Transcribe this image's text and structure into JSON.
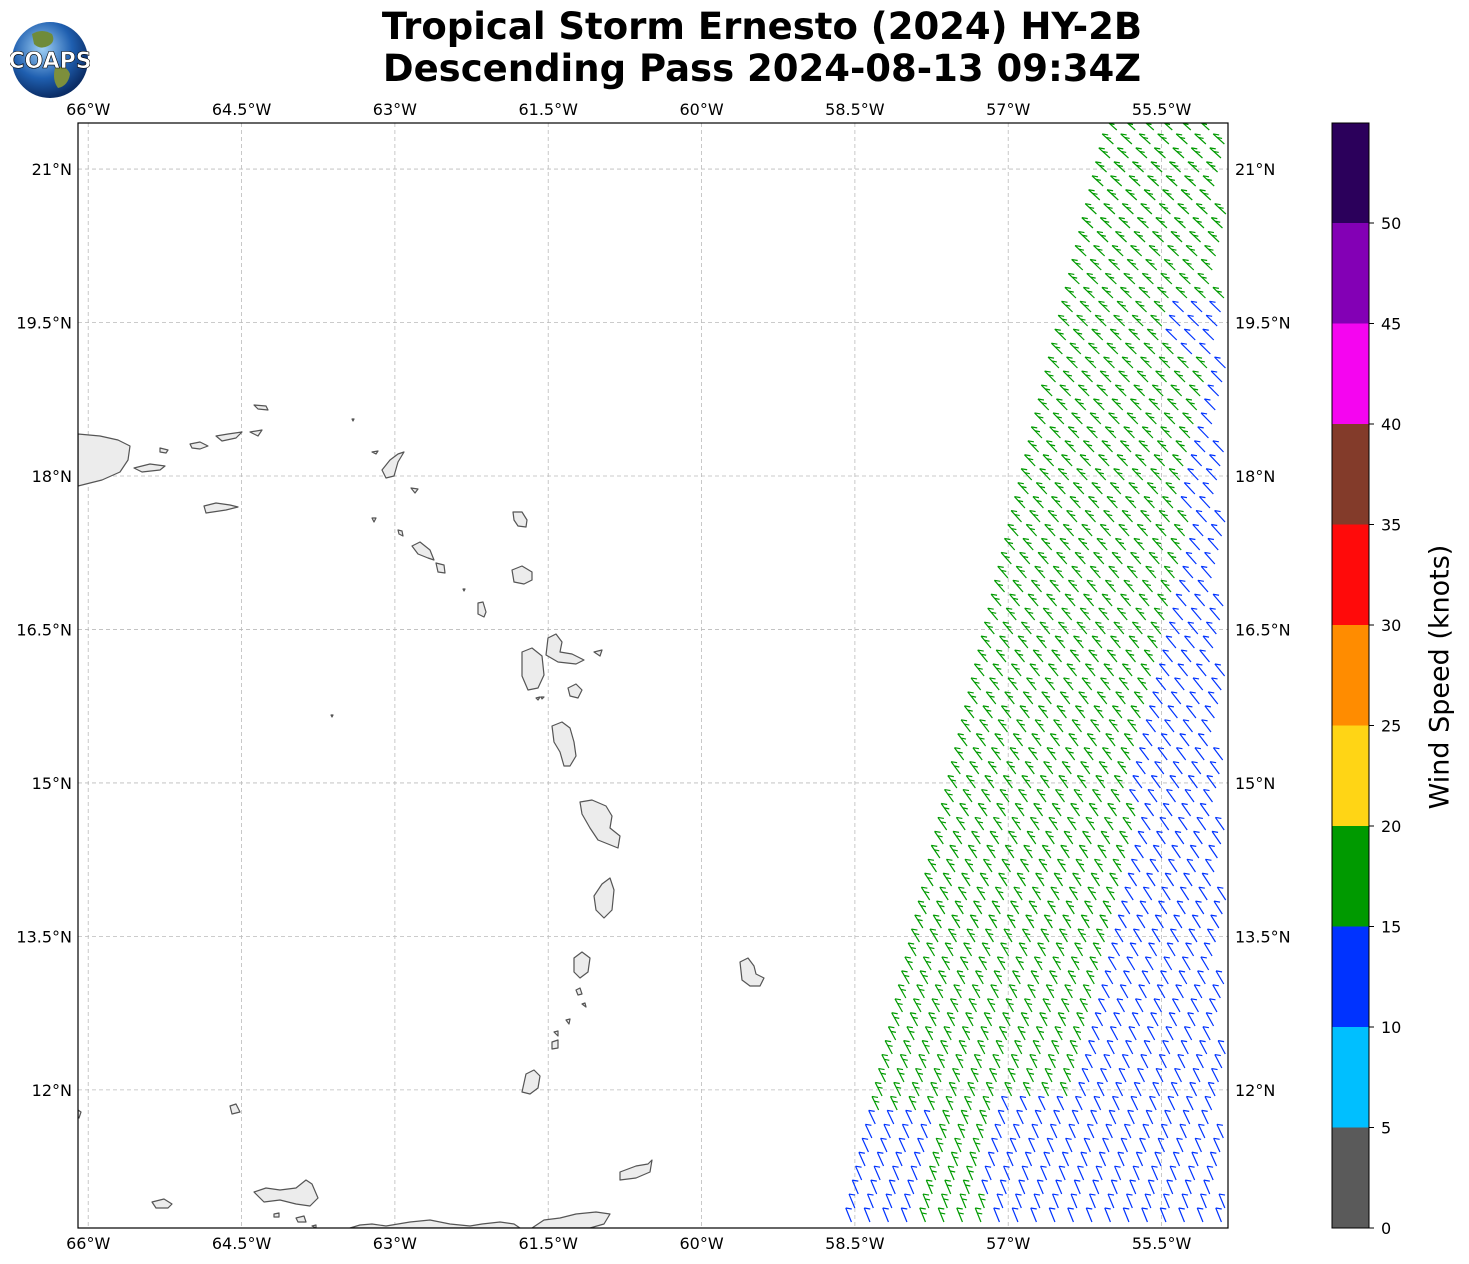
{
  "title": {
    "line1": "Tropical Storm Ernesto (2024) HY-2B",
    "line2": "Descending Pass 2024-08-13 09:34Z"
  },
  "logo": {
    "text": "COAPS"
  },
  "map": {
    "lon_labels": [
      "66°W",
      "64.5°W",
      "63°W",
      "61.5°W",
      "60°W",
      "58.5°W",
      "57°W",
      "55.5°W"
    ],
    "lat_labels": [
      "21°N",
      "19.5°N",
      "18°N",
      "16.5°N",
      "15°N",
      "13.5°N",
      "12°N"
    ],
    "lon_range": [
      -66.1,
      -54.85
    ],
    "lat_range": [
      10.65,
      21.45
    ],
    "coast_color": "#555555",
    "land_color": "#ececec"
  },
  "colorbar": {
    "label": "Wind Speed (knots)",
    "ticks": [
      "0",
      "5",
      "10",
      "15",
      "20",
      "25",
      "30",
      "35",
      "40",
      "45",
      "50"
    ],
    "colors": [
      "#5a5a5a",
      "#00bfff",
      "#0033ff",
      "#009a00",
      "#ffd515",
      "#ff8c00",
      "#ff0a0a",
      "#833b2a",
      "#f505f0",
      "#8300b5",
      "#2b005b"
    ]
  },
  "wind_colors": {
    "moderate": "#0033ff",
    "fresh": "#009a00"
  }
}
